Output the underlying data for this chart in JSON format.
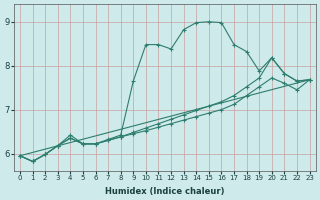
{
  "xlabel": "Humidex (Indice chaleur)",
  "bg_color": "#ceeaea",
  "grid_color": "#c0b8b8",
  "line_color": "#2e7d6e",
  "xlim": [
    -0.5,
    23.5
  ],
  "ylim": [
    5.6,
    9.4
  ],
  "yticks": [
    6,
    7,
    8,
    9
  ],
  "xticks": [
    0,
    1,
    2,
    3,
    4,
    5,
    6,
    7,
    8,
    9,
    10,
    11,
    12,
    13,
    14,
    15,
    16,
    17,
    18,
    19,
    20,
    21,
    22,
    23
  ],
  "line1_x": [
    0,
    1,
    2,
    3,
    4,
    5,
    6,
    7,
    8,
    9,
    10,
    11,
    12,
    13,
    14,
    15,
    16,
    17,
    18,
    19,
    20,
    21,
    22,
    23
  ],
  "line1_y": [
    5.95,
    5.82,
    5.98,
    6.18,
    6.42,
    6.22,
    6.22,
    6.32,
    6.42,
    7.65,
    8.48,
    8.48,
    8.38,
    8.82,
    8.98,
    9.0,
    8.98,
    8.48,
    8.32,
    7.88,
    8.18,
    7.82,
    7.65,
    7.68
  ],
  "line2_x": [
    0,
    1,
    2,
    3,
    4,
    5,
    6,
    7,
    8,
    9,
    10,
    11,
    12,
    13,
    14,
    15,
    16,
    17,
    18,
    19,
    20,
    21,
    22,
    23
  ],
  "line2_y": [
    5.95,
    5.82,
    5.98,
    6.18,
    6.35,
    6.22,
    6.22,
    6.3,
    6.38,
    6.48,
    6.58,
    6.68,
    6.78,
    6.88,
    6.98,
    7.08,
    7.18,
    7.32,
    7.52,
    7.72,
    8.18,
    7.82,
    7.65,
    7.68
  ],
  "line3_x": [
    0,
    1,
    2,
    3,
    4,
    5,
    6,
    7,
    8,
    9,
    10,
    11,
    12,
    13,
    14,
    15,
    16,
    17,
    18,
    19,
    20,
    21,
    22,
    23
  ],
  "line3_y": [
    5.95,
    5.82,
    5.98,
    6.18,
    6.35,
    6.22,
    6.22,
    6.3,
    6.38,
    6.45,
    6.52,
    6.6,
    6.68,
    6.76,
    6.84,
    6.92,
    7.0,
    7.12,
    7.32,
    7.52,
    7.72,
    7.6,
    7.45,
    7.68
  ],
  "line4_x": [
    0,
    23
  ],
  "line4_y": [
    5.95,
    7.68
  ]
}
